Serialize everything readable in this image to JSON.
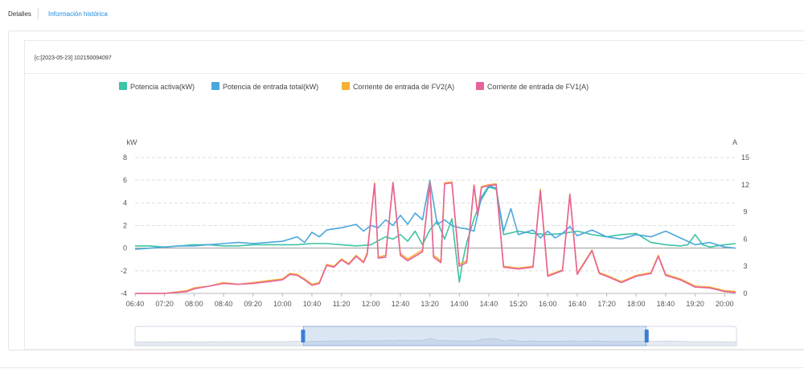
{
  "tabs": {
    "detalles": "Detalles",
    "historica": "Información histórica"
  },
  "device": {
    "label": "[c:[2023-05-23] 102150094097"
  },
  "colors": {
    "potencia_activa": "#3cc4a4",
    "potencia_entrada": "#4ba8dc",
    "fv2": "#f5b133",
    "fv1": "#e8629c",
    "grid": "#dedede",
    "axis_text": "#555555"
  },
  "chart_data": {
    "type": "line",
    "left_unit": "kW",
    "right_unit": "A",
    "left_ticks": [
      "8",
      "6",
      "4",
      "2",
      "0",
      "-2",
      "-4"
    ],
    "right_ticks": [
      "15",
      "12",
      "9",
      "6",
      "3",
      "0"
    ],
    "ylim_left": [
      -4,
      8
    ],
    "ylim_right": [
      0,
      15
    ],
    "x_ticks": [
      "06:40",
      "07:20",
      "08:00",
      "08:40",
      "09:20",
      "10:00",
      "10:40",
      "11:20",
      "12:00",
      "12:40",
      "13:20",
      "14:00",
      "14:40",
      "15:20",
      "16:00",
      "16:40",
      "17:20",
      "18:00",
      "18:40",
      "19:20",
      "20:00"
    ],
    "x_start": "06:40",
    "x_end": "20:15",
    "legend_position": "top",
    "grid": true,
    "dataZoom": {
      "start": 0.28,
      "end": 0.85
    },
    "series": [
      {
        "name": "Potencia activa(kW)",
        "axis": "left",
        "color_key": "potencia_activa",
        "points": [
          [
            "06:40",
            0.2
          ],
          [
            "07:00",
            0.2
          ],
          [
            "07:20",
            0.1
          ],
          [
            "07:40",
            0.2
          ],
          [
            "08:00",
            0.3
          ],
          [
            "08:20",
            0.3
          ],
          [
            "08:40",
            0.2
          ],
          [
            "09:00",
            0.2
          ],
          [
            "09:20",
            0.3
          ],
          [
            "09:40",
            0.3
          ],
          [
            "10:00",
            0.3
          ],
          [
            "10:20",
            0.3
          ],
          [
            "10:40",
            0.4
          ],
          [
            "11:00",
            0.4
          ],
          [
            "11:20",
            0.3
          ],
          [
            "11:40",
            0.2
          ],
          [
            "12:00",
            0.3
          ],
          [
            "12:20",
            1.0
          ],
          [
            "12:30",
            0.8
          ],
          [
            "12:40",
            1.2
          ],
          [
            "12:50",
            0.6
          ],
          [
            "13:00",
            1.5
          ],
          [
            "13:10",
            0.3
          ],
          [
            "13:20",
            1.6
          ],
          [
            "13:30",
            2.4
          ],
          [
            "13:40",
            0.8
          ],
          [
            "13:50",
            2.6
          ],
          [
            "14:00",
            -3.0
          ],
          [
            "14:05",
            -1.0
          ],
          [
            "14:10",
            0.5
          ],
          [
            "14:20",
            2.6
          ],
          [
            "14:30",
            4.3
          ],
          [
            "14:40",
            5.4
          ],
          [
            "14:50",
            5.2
          ],
          [
            "15:00",
            1.2
          ],
          [
            "15:20",
            1.5
          ],
          [
            "15:40",
            1.3
          ],
          [
            "16:00",
            1.2
          ],
          [
            "16:20",
            1.3
          ],
          [
            "16:40",
            1.5
          ],
          [
            "17:00",
            1.2
          ],
          [
            "17:20",
            1.0
          ],
          [
            "17:40",
            1.2
          ],
          [
            "18:00",
            1.3
          ],
          [
            "18:20",
            0.5
          ],
          [
            "18:40",
            0.3
          ],
          [
            "19:00",
            0.2
          ],
          [
            "19:10",
            0.3
          ],
          [
            "19:20",
            1.2
          ],
          [
            "19:30",
            0.3
          ],
          [
            "19:40",
            0.1
          ],
          [
            "20:00",
            0.3
          ],
          [
            "20:15",
            0.4
          ]
        ]
      },
      {
        "name": "Potencia de entrada total(kW)",
        "axis": "left",
        "color_key": "potencia_entrada",
        "points": [
          [
            "06:40",
            -0.1
          ],
          [
            "07:00",
            0.0
          ],
          [
            "07:20",
            0.1
          ],
          [
            "07:40",
            0.2
          ],
          [
            "08:00",
            0.2
          ],
          [
            "08:20",
            0.3
          ],
          [
            "08:40",
            0.4
          ],
          [
            "09:00",
            0.5
          ],
          [
            "09:20",
            0.4
          ],
          [
            "09:40",
            0.5
          ],
          [
            "10:00",
            0.6
          ],
          [
            "10:20",
            1.0
          ],
          [
            "10:30",
            0.5
          ],
          [
            "10:40",
            1.4
          ],
          [
            "10:50",
            1.0
          ],
          [
            "11:00",
            1.6
          ],
          [
            "11:20",
            1.8
          ],
          [
            "11:40",
            2.1
          ],
          [
            "11:50",
            1.5
          ],
          [
            "12:00",
            2.0
          ],
          [
            "12:10",
            1.8
          ],
          [
            "12:20",
            2.5
          ],
          [
            "12:30",
            2.0
          ],
          [
            "12:40",
            2.9
          ],
          [
            "12:50",
            2.1
          ],
          [
            "13:00",
            3.1
          ],
          [
            "13:10",
            2.5
          ],
          [
            "13:20",
            6.0
          ],
          [
            "13:30",
            2.1
          ],
          [
            "13:40",
            2.5
          ],
          [
            "13:50",
            2.0
          ],
          [
            "14:00",
            1.8
          ],
          [
            "14:10",
            1.7
          ],
          [
            "14:20",
            1.5
          ],
          [
            "14:30",
            4.5
          ],
          [
            "14:40",
            5.5
          ],
          [
            "14:50",
            5.3
          ],
          [
            "15:00",
            1.5
          ],
          [
            "15:10",
            3.5
          ],
          [
            "15:20",
            1.2
          ],
          [
            "15:40",
            1.6
          ],
          [
            "15:50",
            0.9
          ],
          [
            "16:00",
            1.5
          ],
          [
            "16:10",
            0.9
          ],
          [
            "16:20",
            1.3
          ],
          [
            "16:30",
            1.9
          ],
          [
            "16:40",
            1.1
          ],
          [
            "17:00",
            1.6
          ],
          [
            "17:20",
            1.0
          ],
          [
            "17:40",
            0.8
          ],
          [
            "18:00",
            1.2
          ],
          [
            "18:20",
            1.0
          ],
          [
            "18:40",
            1.5
          ],
          [
            "19:00",
            0.9
          ],
          [
            "19:20",
            0.3
          ],
          [
            "19:40",
            0.5
          ],
          [
            "20:00",
            0.1
          ],
          [
            "20:15",
            0.0
          ]
        ]
      },
      {
        "name": "Corriente de entrada de FV2(A)",
        "axis": "right",
        "color_key": "fv2",
        "points": [
          [
            "06:40",
            0.0
          ],
          [
            "07:20",
            0.0
          ],
          [
            "07:50",
            0.3
          ],
          [
            "08:00",
            0.6
          ],
          [
            "08:20",
            0.8
          ],
          [
            "08:40",
            1.2
          ],
          [
            "09:00",
            1.0
          ],
          [
            "09:20",
            1.2
          ],
          [
            "09:40",
            1.4
          ],
          [
            "10:00",
            1.6
          ],
          [
            "10:10",
            2.2
          ],
          [
            "10:20",
            2.1
          ],
          [
            "10:30",
            1.6
          ],
          [
            "10:40",
            1.0
          ],
          [
            "10:50",
            1.2
          ],
          [
            "11:00",
            3.2
          ],
          [
            "11:10",
            3.0
          ],
          [
            "11:20",
            3.8
          ],
          [
            "11:30",
            3.3
          ],
          [
            "11:40",
            4.2
          ],
          [
            "11:50",
            3.5
          ],
          [
            "11:55",
            4.5
          ],
          [
            "12:05",
            12.2
          ],
          [
            "12:10",
            4.0
          ],
          [
            "12:20",
            4.2
          ],
          [
            "12:30",
            12.3
          ],
          [
            "12:40",
            4.4
          ],
          [
            "12:50",
            3.8
          ],
          [
            "13:00",
            4.3
          ],
          [
            "13:10",
            4.8
          ],
          [
            "13:20",
            12.3
          ],
          [
            "13:25",
            4.2
          ],
          [
            "13:35",
            3.6
          ],
          [
            "13:40",
            12.2
          ],
          [
            "13:50",
            12.3
          ],
          [
            "14:00",
            3.2
          ],
          [
            "14:10",
            3.6
          ],
          [
            "14:20",
            12.0
          ],
          [
            "14:25",
            8.8
          ],
          [
            "14:30",
            11.8
          ],
          [
            "14:40",
            12.0
          ],
          [
            "14:50",
            12.1
          ],
          [
            "15:00",
            3.0
          ],
          [
            "15:20",
            2.8
          ],
          [
            "15:40",
            3.0
          ],
          [
            "15:50",
            11.5
          ],
          [
            "16:00",
            2.0
          ],
          [
            "16:20",
            2.6
          ],
          [
            "16:30",
            11.0
          ],
          [
            "16:40",
            2.2
          ],
          [
            "17:00",
            4.8
          ],
          [
            "17:10",
            2.3
          ],
          [
            "17:20",
            2.0
          ],
          [
            "17:40",
            1.3
          ],
          [
            "18:00",
            2.0
          ],
          [
            "18:20",
            2.3
          ],
          [
            "18:30",
            4.2
          ],
          [
            "18:40",
            2.1
          ],
          [
            "19:00",
            1.6
          ],
          [
            "19:20",
            0.8
          ],
          [
            "19:40",
            0.7
          ],
          [
            "20:00",
            0.3
          ],
          [
            "20:15",
            0.2
          ]
        ]
      },
      {
        "name": "Corriente de entrada de FV1(A)",
        "axis": "right",
        "color_key": "fv1",
        "points": [
          [
            "06:40",
            0.0
          ],
          [
            "07:20",
            0.0
          ],
          [
            "07:50",
            0.2
          ],
          [
            "08:00",
            0.5
          ],
          [
            "08:20",
            0.8
          ],
          [
            "08:40",
            1.1
          ],
          [
            "09:00",
            1.0
          ],
          [
            "09:20",
            1.1
          ],
          [
            "09:40",
            1.3
          ],
          [
            "10:00",
            1.5
          ],
          [
            "10:10",
            2.1
          ],
          [
            "10:20",
            2.0
          ],
          [
            "10:30",
            1.5
          ],
          [
            "10:40",
            0.9
          ],
          [
            "10:50",
            1.1
          ],
          [
            "11:00",
            3.1
          ],
          [
            "11:10",
            2.9
          ],
          [
            "11:20",
            3.7
          ],
          [
            "11:30",
            3.2
          ],
          [
            "11:40",
            4.1
          ],
          [
            "11:50",
            3.4
          ],
          [
            "11:55",
            4.3
          ],
          [
            "12:05",
            12.1
          ],
          [
            "12:10",
            3.9
          ],
          [
            "12:20",
            4.0
          ],
          [
            "12:30",
            12.2
          ],
          [
            "12:40",
            4.2
          ],
          [
            "12:50",
            3.6
          ],
          [
            "13:00",
            4.1
          ],
          [
            "13:10",
            4.6
          ],
          [
            "13:20",
            12.2
          ],
          [
            "13:25",
            4.0
          ],
          [
            "13:35",
            3.4
          ],
          [
            "13:40",
            12.1
          ],
          [
            "13:50",
            12.2
          ],
          [
            "14:00",
            3.0
          ],
          [
            "14:10",
            3.4
          ],
          [
            "14:20",
            11.9
          ],
          [
            "14:25",
            8.6
          ],
          [
            "14:30",
            11.7
          ],
          [
            "14:40",
            11.9
          ],
          [
            "14:50",
            12.0
          ],
          [
            "15:00",
            2.9
          ],
          [
            "15:20",
            2.7
          ],
          [
            "15:40",
            2.9
          ],
          [
            "15:50",
            11.3
          ],
          [
            "16:00",
            1.9
          ],
          [
            "16:20",
            2.5
          ],
          [
            "16:30",
            10.9
          ],
          [
            "16:40",
            2.1
          ],
          [
            "17:00",
            4.7
          ],
          [
            "17:10",
            2.2
          ],
          [
            "17:20",
            1.9
          ],
          [
            "17:40",
            1.2
          ],
          [
            "18:00",
            1.9
          ],
          [
            "18:20",
            2.2
          ],
          [
            "18:30",
            4.1
          ],
          [
            "18:40",
            2.0
          ],
          [
            "19:00",
            1.5
          ],
          [
            "19:20",
            0.7
          ],
          [
            "19:40",
            0.6
          ],
          [
            "20:00",
            0.2
          ],
          [
            "20:15",
            0.1
          ]
        ]
      }
    ]
  }
}
